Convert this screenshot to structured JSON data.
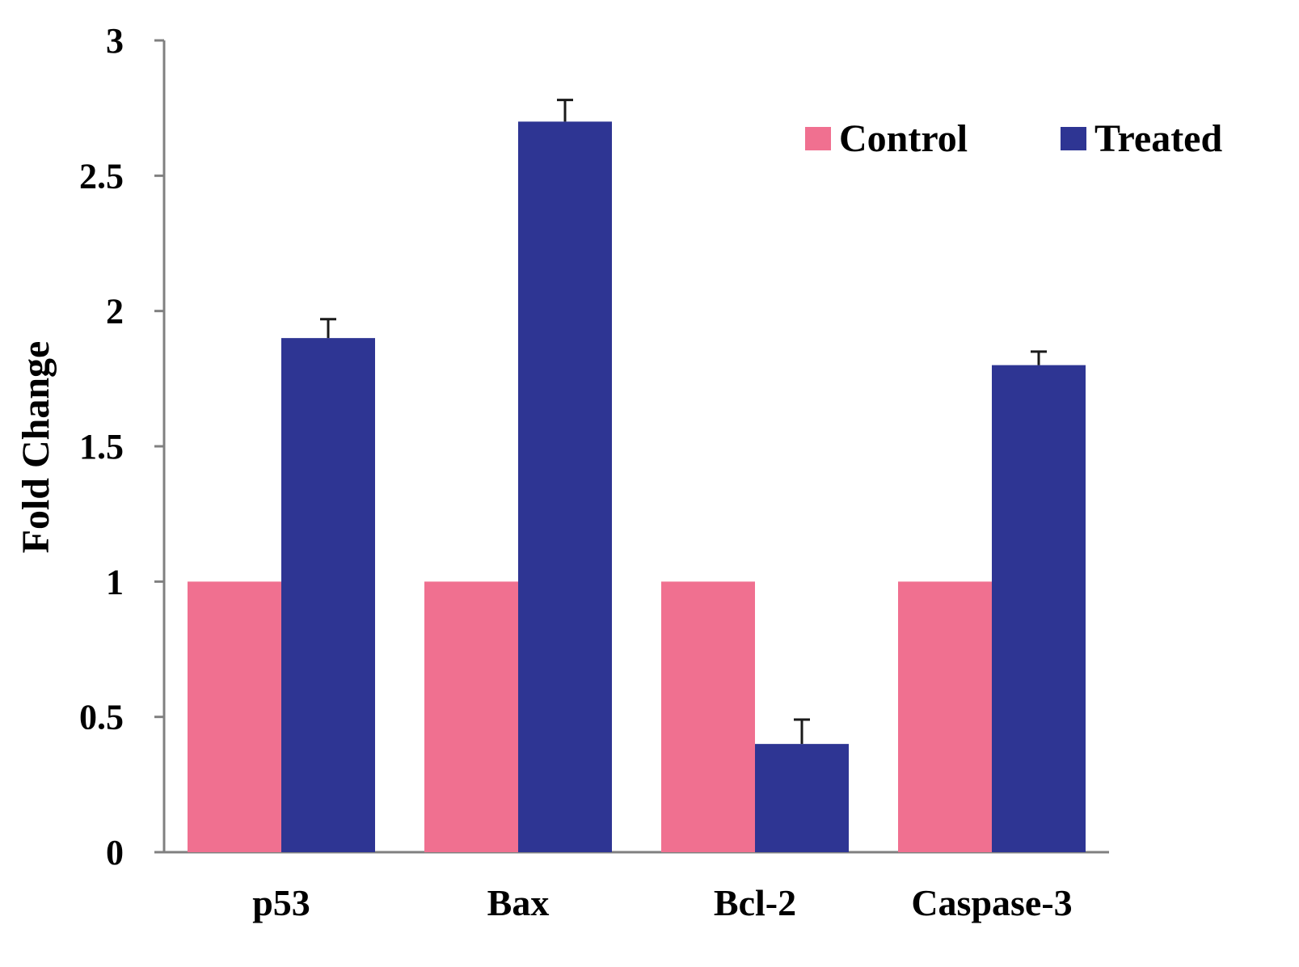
{
  "chart_data": {
    "type": "bar",
    "title": "",
    "xlabel": "",
    "ylabel": "Fold Change",
    "categories": [
      "p53",
      "Bax",
      "Bcl-2",
      "Caspase-3"
    ],
    "series": [
      {
        "name": "Control",
        "color": "#F07090",
        "values": [
          1,
          1,
          1,
          1
        ],
        "errors": [
          0,
          0,
          0,
          0
        ]
      },
      {
        "name": "Treated",
        "color": "#2E3593",
        "values": [
          1.9,
          2.7,
          0.4,
          1.8
        ],
        "errors": [
          0.07,
          0.08,
          0.09,
          0.05
        ]
      }
    ],
    "ylim": [
      0,
      3
    ],
    "yticks": [
      0,
      0.5,
      1,
      1.5,
      2,
      2.5,
      3
    ],
    "ytick_labels": [
      "0",
      "0.5",
      "1",
      "1.5",
      "2",
      "2.5",
      "3"
    ],
    "grid": false,
    "legend_position": "top-right",
    "axis_color": "#808080"
  }
}
